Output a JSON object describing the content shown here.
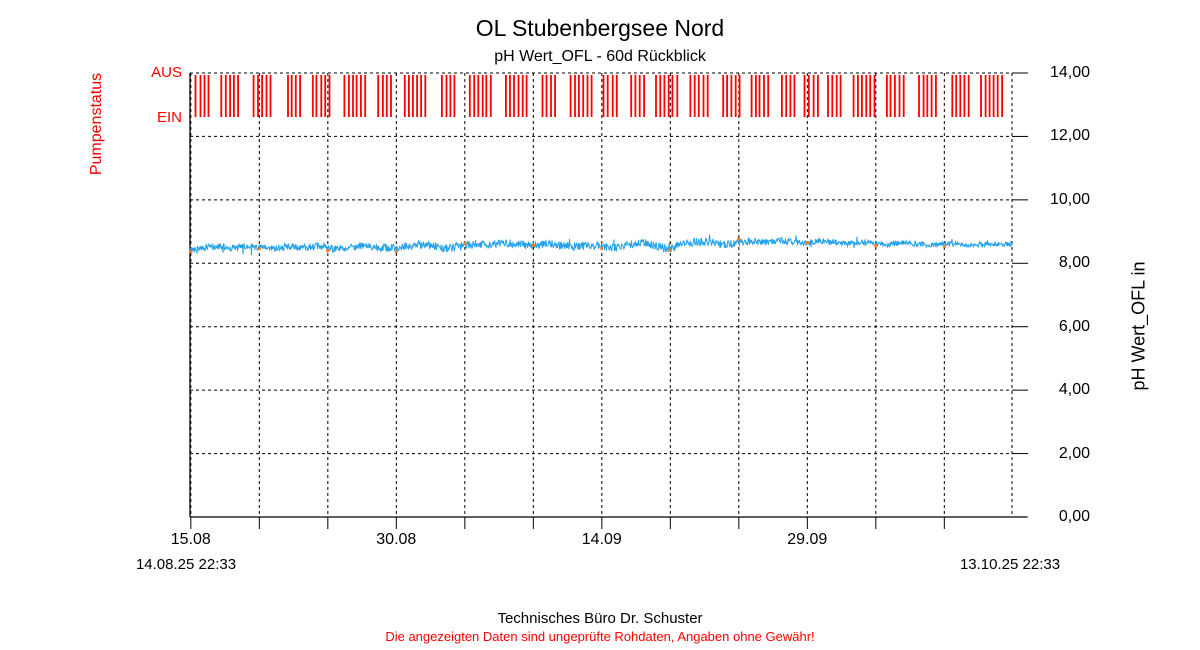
{
  "title": "OL Stubenbergsee Nord",
  "subtitle": "pH Wert_OFL - 60d Rückblick",
  "footer": {
    "company": "Technisches Büro Dr. Schuster",
    "disclaimer": "Die angezeigten Daten sind ungeprüfte Rohdaten, Angaben ohne Gewähr!"
  },
  "pump_axis": {
    "label": "Pumpenstatus",
    "state_top": "AUS",
    "state_bottom": "EIN",
    "color": "#ff0000"
  },
  "right_axis": {
    "label": "pH Wert_OFL in",
    "tick_labels": [
      "14,00",
      "12,00",
      "10,00",
      "8,00",
      "6,00",
      "4,00",
      "2,00",
      "0,00"
    ]
  },
  "x_axis": {
    "major_labels": [
      "15.08",
      "30.08",
      "14.09",
      "29.09"
    ],
    "start_label": "14.08.25 22:33",
    "end_label": "13.10.25 22:33",
    "tick_interval_days": 5,
    "label_interval_days": 15
  },
  "chart_data": {
    "type": "line",
    "title": "OL Stubenbergsee Nord",
    "subtitle": "pH Wert_OFL - 60d Rückblick",
    "x_start": "14.08.25 22:33",
    "x_end": "13.10.25 22:33",
    "span_days": 60,
    "first_tick_offset_days": 0.06,
    "ylim": [
      0,
      14
    ],
    "yticks": [
      0,
      2,
      4,
      6,
      8,
      10,
      12,
      14
    ],
    "grid": true,
    "series": [
      {
        "name": "pH Wert_OFL",
        "color": "#25a2ea",
        "x_days": [
          0,
          1,
          2,
          3,
          4,
          5,
          6,
          7,
          8,
          9,
          10,
          11,
          12,
          13,
          14,
          15,
          16,
          17,
          18,
          19,
          20,
          21,
          22,
          23,
          24,
          25,
          26,
          27,
          28,
          29,
          30,
          31,
          32,
          33,
          34,
          35,
          36,
          37,
          38,
          39,
          40,
          41,
          42,
          43,
          44,
          45,
          46,
          47,
          48,
          49,
          50,
          51,
          52,
          53,
          54,
          55,
          56,
          57,
          58,
          59,
          60
        ],
        "values": [
          8.42,
          8.5,
          8.52,
          8.48,
          8.53,
          8.5,
          8.47,
          8.52,
          8.49,
          8.54,
          8.5,
          8.46,
          8.52,
          8.55,
          8.5,
          8.48,
          8.55,
          8.6,
          8.52,
          8.47,
          8.56,
          8.62,
          8.58,
          8.65,
          8.6,
          8.55,
          8.62,
          8.58,
          8.52,
          8.57,
          8.53,
          8.48,
          8.58,
          8.66,
          8.55,
          8.45,
          8.6,
          8.7,
          8.64,
          8.58,
          8.65,
          8.7,
          8.66,
          8.72,
          8.68,
          8.64,
          8.7,
          8.66,
          8.62,
          8.66,
          8.63,
          8.6,
          8.64,
          8.61,
          8.58,
          8.62,
          8.6,
          8.57,
          8.61,
          8.59,
          8.6
        ],
        "noise_profile": [
          [
            0,
            0.1
          ],
          [
            18,
            0.13
          ],
          [
            30,
            0.12
          ],
          [
            38,
            0.13
          ],
          [
            45,
            0.09
          ],
          [
            60,
            0.08
          ]
        ],
        "spike_probability": 0.03,
        "spike_amplitude": 0.5,
        "seed": 42
      }
    ],
    "interval_markers": {
      "every_days": 5,
      "color": "#ff7a1a",
      "size": 3
    },
    "pump_status": {
      "label": "Pumpenstatus",
      "states": [
        "AUS",
        "EIN"
      ],
      "color": "#ff0000",
      "pattern": "clusters of 4-6 short on/off switching pulses roughly every 2 days for the whole 60d window",
      "bar_width": 1.8,
      "bar_spacing": 4.2,
      "cluster_gap_min": 6,
      "cluster_gap_max": 13,
      "seed": 7
    }
  }
}
